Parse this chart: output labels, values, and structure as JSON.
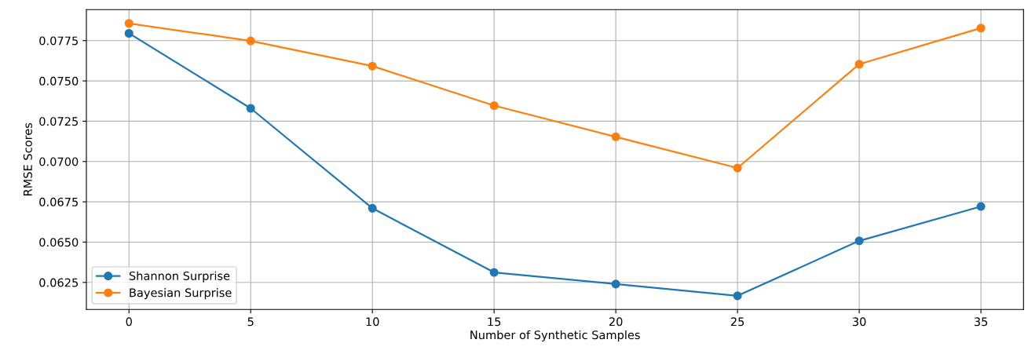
{
  "chart_data": {
    "type": "line",
    "xlabel": "Number of Synthetic Samples",
    "ylabel": "RMSE Scores",
    "x": [
      0,
      5,
      10,
      15,
      20,
      25,
      30,
      35
    ],
    "series": [
      {
        "name": "Shannon Surprise",
        "color": "#1f77b4",
        "values": [
          0.07795,
          0.0733,
          0.0671,
          0.06312,
          0.0624,
          0.06167,
          0.06508,
          0.06721
        ]
      },
      {
        "name": "Bayesian Surprise",
        "color": "#ff7f0e",
        "values": [
          0.07857,
          0.07748,
          0.07592,
          0.07347,
          0.07153,
          0.0696,
          0.07604,
          0.07828
        ]
      }
    ],
    "xlim": [
      -1.75,
      36.75
    ],
    "ylim": [
      0.06082,
      0.07942
    ],
    "xticks": [
      0,
      5,
      10,
      15,
      20,
      25,
      30,
      35
    ],
    "yticks": [
      {
        "value": 0.0625,
        "label": "0.0625"
      },
      {
        "value": 0.065,
        "label": "0.0650"
      },
      {
        "value": 0.0675,
        "label": "0.0675"
      },
      {
        "value": 0.07,
        "label": "0.0700"
      },
      {
        "value": 0.0725,
        "label": "0.0725"
      },
      {
        "value": 0.075,
        "label": "0.0750"
      },
      {
        "value": 0.0775,
        "label": "0.0775"
      }
    ],
    "grid": true,
    "legend": "lower left",
    "marker": "circle",
    "line_style": "solid"
  }
}
